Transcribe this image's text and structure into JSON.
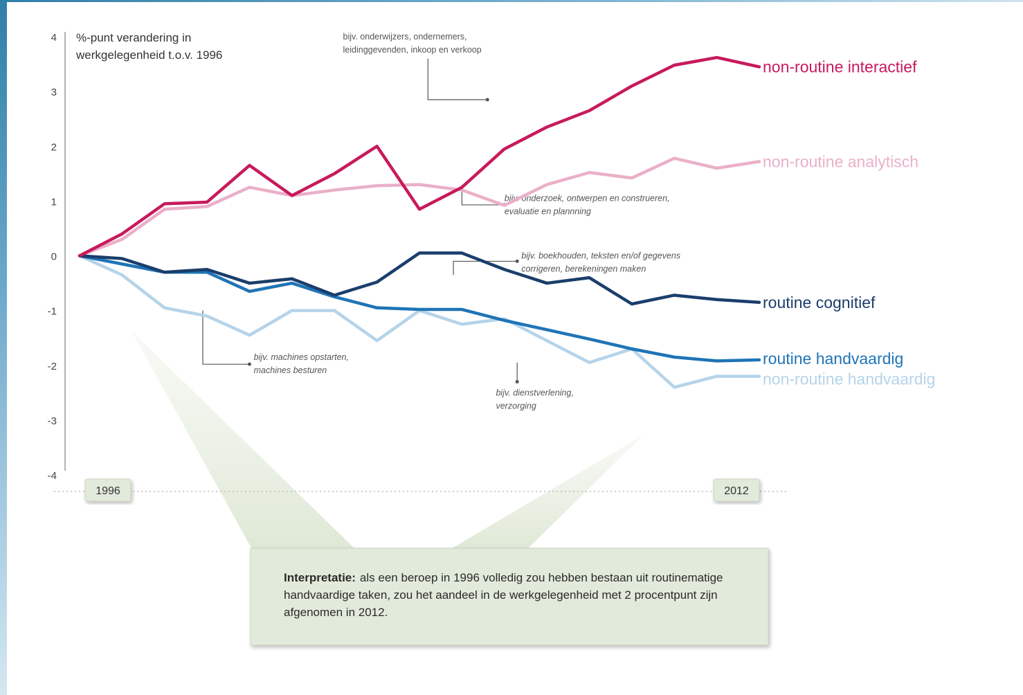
{
  "chart_data": {
    "type": "line",
    "title": "%-punt verandering in werkgelegenheid t.o.v. 1996",
    "title_lines": [
      "%-punt verandering in",
      "werkgelegenheid t.o.v. 1996"
    ],
    "ylim": [
      -4,
      4
    ],
    "y_ticks": [
      {
        "value": 4,
        "label": "4"
      },
      {
        "value": 3,
        "label": "3"
      },
      {
        "value": 2,
        "label": "2"
      },
      {
        "value": 1,
        "label": "1"
      },
      {
        "value": 0,
        "label": "0"
      },
      {
        "value": -1,
        "label": "-1"
      },
      {
        "value": -2,
        "label": "-2"
      },
      {
        "value": -3,
        "label": "-3"
      },
      {
        "value": -4,
        "label": "-4"
      }
    ],
    "xlim": [
      1996,
      2012
    ],
    "x_tick_labels": [
      {
        "value": 1996,
        "label": "1996"
      },
      {
        "value": 2012,
        "label": "2012"
      }
    ],
    "x": [
      1996,
      1997,
      1998,
      1999,
      2000,
      2001,
      2002,
      2003,
      2004,
      2005,
      2006,
      2007,
      2008,
      2009,
      2010,
      2011,
      2012
    ],
    "series": [
      {
        "name": "non-routine analytisch",
        "color": "#eab0c8",
        "values": [
          0.0,
          0.3,
          0.85,
          0.9,
          1.25,
          1.1,
          1.2,
          1.28,
          1.3,
          1.2,
          0.92,
          1.3,
          1.52,
          1.42,
          1.78,
          1.6,
          1.72
        ]
      },
      {
        "name": "non-routine handvaardig",
        "color": "#b5d4ea",
        "values": [
          0.0,
          -0.35,
          -0.95,
          -1.1,
          -1.45,
          -1.0,
          -1.0,
          -1.55,
          -1.0,
          -1.25,
          -1.15,
          -1.55,
          -1.95,
          -1.7,
          -2.4,
          -2.2,
          -2.2
        ]
      },
      {
        "name": "routine handvaardig",
        "color": "#1f74b6",
        "values": [
          0.0,
          -0.15,
          -0.3,
          -0.3,
          -0.65,
          -0.5,
          -0.75,
          -0.95,
          -0.98,
          -0.98,
          -1.18,
          -1.35,
          -1.52,
          -1.7,
          -1.85,
          -1.92,
          -1.9
        ]
      },
      {
        "name": "routine cognitief",
        "color": "#1b3e6b",
        "values": [
          0.0,
          -0.05,
          -0.3,
          -0.25,
          -0.5,
          -0.42,
          -0.72,
          -0.48,
          0.05,
          0.05,
          -0.25,
          -0.5,
          -0.4,
          -0.88,
          -0.72,
          -0.8,
          -0.85
        ]
      },
      {
        "name": "non-routine interactief",
        "color": "#c71a5c",
        "values": [
          0.0,
          0.4,
          0.95,
          0.98,
          1.65,
          1.1,
          1.5,
          2.0,
          0.85,
          1.25,
          1.95,
          2.35,
          2.65,
          3.1,
          3.48,
          3.62,
          3.45
        ]
      }
    ],
    "annotations": [
      {
        "lines": [
          "bijv. onderwijzers, ondernemers,",
          "leidinggevenden, inkoop en verkoop"
        ],
        "color": "#555555",
        "italic": false,
        "label_x": 2002.2,
        "label_y": 3.95,
        "path": [
          [
            2004.2,
            3.6
          ],
          [
            2004.2,
            2.85
          ],
          [
            2005.6,
            2.85
          ]
        ]
      },
      {
        "lines": [
          "bijv. onderzoek, ontwerpen en construeren,",
          "evaluatie en plannning"
        ],
        "color": "#555555",
        "italic": true,
        "label_x": 2006.0,
        "label_y": 1.0,
        "path": [
          [
            2005.0,
            1.25
          ],
          [
            2005.0,
            0.93
          ],
          [
            2006.0,
            0.93
          ]
        ]
      },
      {
        "lines": [
          "bijv. boekhouden, teksten en/of gegevens",
          "corrigeren, berekeningen maken"
        ],
        "color": "#555555",
        "italic": true,
        "label_x": 2006.4,
        "label_y": -0.05,
        "path": [
          [
            2004.8,
            -0.35
          ],
          [
            2004.8,
            -0.1
          ],
          [
            2006.3,
            -0.1
          ]
        ]
      },
      {
        "lines": [
          "bijv. machines opstarten,",
          "machines besturen"
        ],
        "color": "#555555",
        "italic": true,
        "label_x": 2000.1,
        "label_y": -1.9,
        "path": [
          [
            1998.9,
            -1.0
          ],
          [
            1998.9,
            -1.98
          ],
          [
            2000.0,
            -1.98
          ]
        ]
      },
      {
        "lines": [
          "bijv. dienstverlening,",
          "verzorging"
        ],
        "color": "#555555",
        "italic": true,
        "label_x": 2005.8,
        "label_y": -2.55,
        "path": [
          [
            2006.3,
            -1.95
          ],
          [
            2006.3,
            -2.3
          ]
        ]
      }
    ]
  },
  "callout": {
    "bold": "Interpretatie:",
    "text": "als een beroep in 1996 volledig zou hebben bestaan uit routinematige handvaardige taken, zou het aandeel in de werkgelegenheid met 2 procentpunt zijn afgenomen in 2012."
  }
}
